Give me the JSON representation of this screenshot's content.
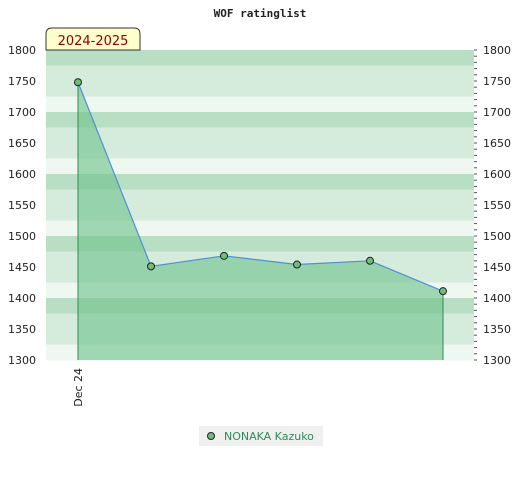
{
  "chart_data": {
    "type": "area",
    "title": "WOF ratinglist",
    "season_label": "2024-2025",
    "x_tick_labels": [
      "Dec 24"
    ],
    "ylim": [
      1300,
      1800
    ],
    "y_ticks": [
      1300,
      1350,
      1400,
      1450,
      1500,
      1550,
      1600,
      1650,
      1700,
      1750,
      1800
    ],
    "y_ticks_both_sides": true,
    "grid": "horizontal bands",
    "legend_position": "bottom-center",
    "series": [
      {
        "name": "NONAKA Kazuko",
        "values": [
          1748,
          1451,
          1468,
          1454,
          1460,
          1411
        ]
      }
    ],
    "colors": {
      "line": "#4f8fd6",
      "fill": "#6cc28a",
      "marker": "#6fbf7a",
      "band_dark": "#b8dfc3",
      "band_mid": "#d5ebdc",
      "band_light": "#eef7f0",
      "legend_text": "#2e8b57",
      "season_badge_bg": "#ffffcc",
      "season_badge_text": "#8b0000"
    }
  }
}
